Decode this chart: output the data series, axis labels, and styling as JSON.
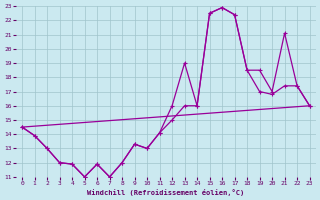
{
  "xlabel": "Windchill (Refroidissement éolien,°C)",
  "xlim": [
    -0.5,
    23.5
  ],
  "ylim": [
    11,
    23
  ],
  "xticks": [
    0,
    1,
    2,
    3,
    4,
    5,
    6,
    7,
    8,
    9,
    10,
    11,
    12,
    13,
    14,
    15,
    16,
    17,
    18,
    19,
    20,
    21,
    22,
    23
  ],
  "yticks": [
    11,
    12,
    13,
    14,
    15,
    16,
    17,
    18,
    19,
    20,
    21,
    22,
    23
  ],
  "bg_color": "#cbe9f0",
  "grid_color": "#a0c4cc",
  "line_color": "#990099",
  "line1_x": [
    0,
    23
  ],
  "line1_y": [
    14.5,
    16.0
  ],
  "line2_x": [
    0,
    1,
    2,
    3,
    4,
    5,
    6,
    7,
    8,
    9,
    10,
    11,
    12,
    13,
    14,
    15,
    16,
    17,
    18,
    19,
    20,
    21,
    22,
    23
  ],
  "line2_y": [
    14.5,
    13.9,
    13.0,
    12.0,
    11.9,
    11.0,
    11.9,
    11.0,
    12.0,
    13.3,
    13.0,
    14.1,
    16.0,
    19.0,
    16.0,
    22.5,
    22.9,
    22.4,
    18.5,
    18.5,
    17.0,
    21.1,
    17.4,
    16.0
  ],
  "line3_x": [
    0,
    1,
    2,
    3,
    4,
    5,
    6,
    7,
    8,
    9,
    10,
    11,
    12,
    13,
    14,
    15,
    16,
    17,
    18,
    19,
    20,
    21,
    22,
    23
  ],
  "line3_y": [
    14.5,
    13.9,
    13.0,
    12.0,
    11.9,
    11.0,
    11.9,
    11.0,
    12.0,
    13.3,
    13.0,
    14.1,
    15.0,
    16.0,
    16.0,
    22.5,
    22.9,
    22.4,
    18.5,
    17.0,
    16.8,
    17.4,
    17.4,
    16.0
  ]
}
